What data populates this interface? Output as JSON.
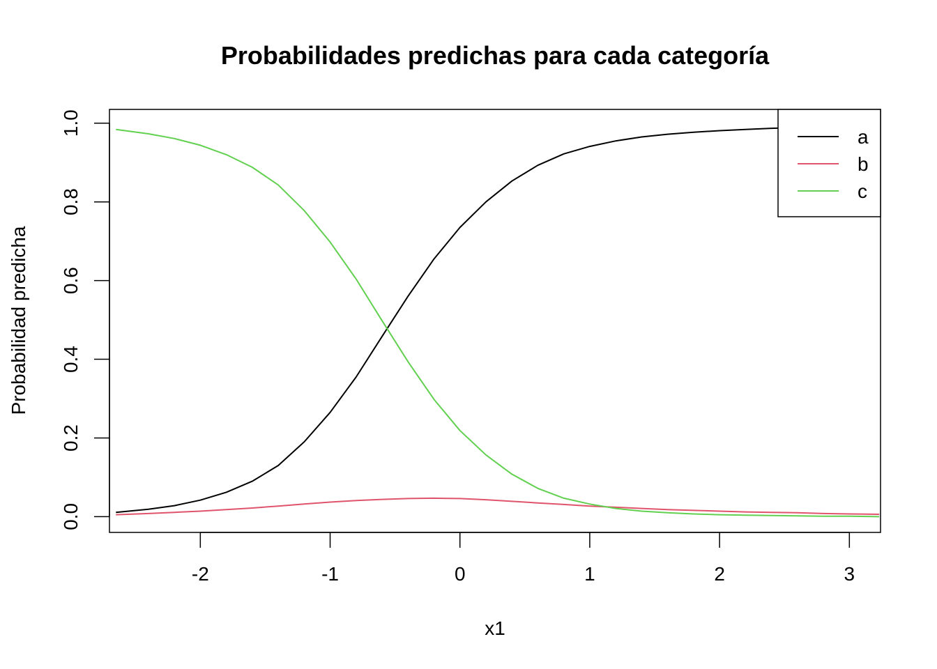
{
  "chart_data": {
    "type": "line",
    "title": "Probabilidades predichas para cada categoría",
    "xlabel": "x1",
    "ylabel": "Probabilidad predicha",
    "xlim": [
      -2.7,
      3.24
    ],
    "ylim": [
      -0.04,
      1.035
    ],
    "xticks": [
      -2,
      -1,
      0,
      1,
      2,
      3
    ],
    "xtick_labels": [
      "-2",
      "-1",
      "0",
      "1",
      "2",
      "3"
    ],
    "yticks": [
      0.0,
      0.2,
      0.4,
      0.6,
      0.8,
      1.0
    ],
    "ytick_labels": [
      "0.0",
      "0.2",
      "0.4",
      "0.6",
      "0.8",
      "1.0"
    ],
    "grid": false,
    "legend_position": "top-right",
    "x": [
      -2.65,
      -2.4,
      -2.2,
      -2.0,
      -1.8,
      -1.6,
      -1.4,
      -1.2,
      -1.0,
      -0.8,
      -0.6,
      -0.4,
      -0.2,
      0.0,
      0.2,
      0.4,
      0.6,
      0.8,
      1.0,
      1.2,
      1.4,
      1.6,
      1.8,
      2.0,
      2.2,
      2.4,
      2.6,
      2.8,
      3.0,
      3.23
    ],
    "series": [
      {
        "name": "a",
        "color": "#000000",
        "values": [
          0.011,
          0.019,
          0.028,
          0.042,
          0.062,
          0.09,
          0.13,
          0.19,
          0.265,
          0.355,
          0.458,
          0.56,
          0.655,
          0.735,
          0.8,
          0.853,
          0.893,
          0.922,
          0.941,
          0.955,
          0.965,
          0.972,
          0.977,
          0.981,
          0.984,
          0.987,
          0.989,
          0.991,
          0.992,
          0.994
        ]
      },
      {
        "name": "b",
        "color": "#DF536B",
        "values": [
          0.005,
          0.008,
          0.011,
          0.014,
          0.018,
          0.022,
          0.027,
          0.032,
          0.037,
          0.041,
          0.044,
          0.046,
          0.047,
          0.046,
          0.043,
          0.039,
          0.035,
          0.031,
          0.027,
          0.024,
          0.021,
          0.018,
          0.016,
          0.014,
          0.012,
          0.011,
          0.01,
          0.008,
          0.007,
          0.006
        ]
      },
      {
        "name": "c",
        "color": "#61D04F",
        "values": [
          0.984,
          0.973,
          0.961,
          0.944,
          0.92,
          0.888,
          0.843,
          0.778,
          0.698,
          0.604,
          0.498,
          0.394,
          0.298,
          0.219,
          0.157,
          0.108,
          0.072,
          0.047,
          0.032,
          0.021,
          0.014,
          0.01,
          0.007,
          0.005,
          0.004,
          0.003,
          0.002,
          0.001,
          0.001,
          0.0
        ]
      }
    ]
  }
}
